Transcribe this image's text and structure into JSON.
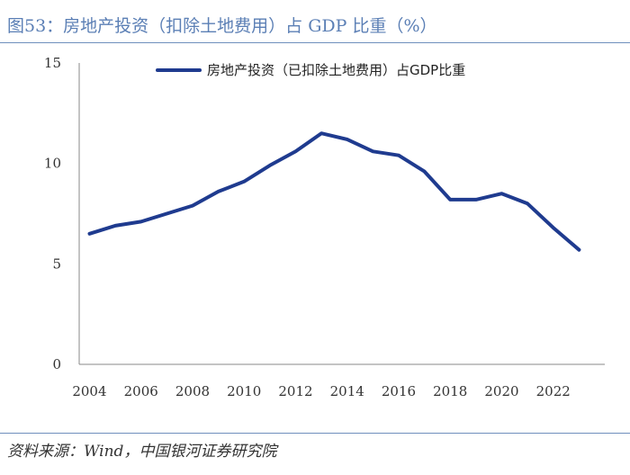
{
  "header": {
    "title": "图53：房地产投资（扣除土地费用）占 GDP 比重（%）"
  },
  "footer": {
    "source": "资料来源：Wind，中国银河证券研究院"
  },
  "colors": {
    "line": "#1f3b8f",
    "title": "#5b7fb5",
    "rule": "#6f8fbd"
  },
  "chart_data": {
    "type": "line",
    "title": "图53：房地产投资（扣除土地费用）占 GDP 比重（%）",
    "xlabel": "",
    "ylabel": "",
    "ylim": [
      0,
      15
    ],
    "yticks": [
      "0",
      "5",
      "10",
      "15"
    ],
    "xticks": [
      "2004",
      "2006",
      "2008",
      "2010",
      "2012",
      "2014",
      "2016",
      "2018",
      "2020",
      "2022"
    ],
    "x": [
      2004,
      2005,
      2006,
      2007,
      2008,
      2009,
      2010,
      2011,
      2012,
      2013,
      2014,
      2015,
      2016,
      2017,
      2018,
      2019,
      2020,
      2021,
      2022,
      2023
    ],
    "legend_position": "top",
    "series": [
      {
        "name": "房地产投资（已扣除土地费用）占GDP比重",
        "values": [
          6.5,
          6.9,
          7.1,
          7.5,
          7.9,
          8.6,
          9.1,
          9.9,
          10.6,
          11.5,
          11.2,
          10.6,
          10.4,
          9.6,
          8.2,
          8.2,
          8.5,
          8.0,
          6.8,
          5.7
        ]
      }
    ]
  }
}
